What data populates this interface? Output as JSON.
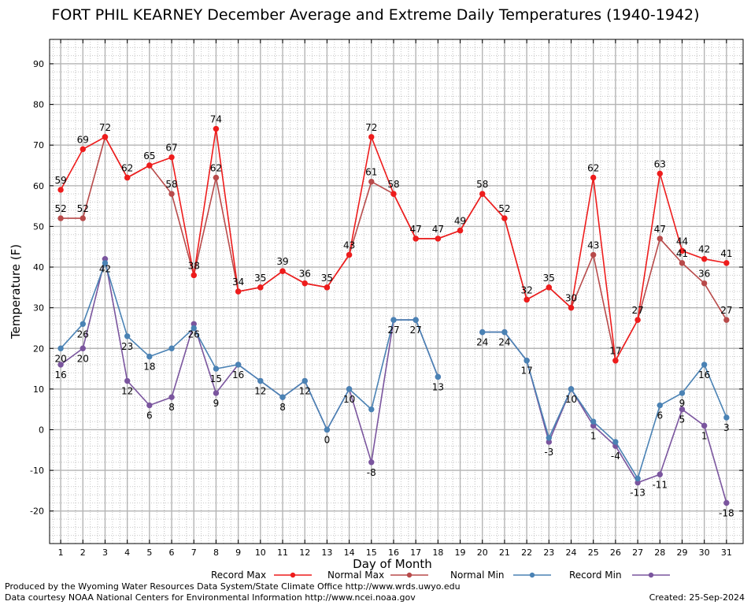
{
  "chart_data": {
    "type": "line",
    "title": "FORT PHIL KEARNEY December Average and Extreme Daily Temperatures (1940-1942)",
    "xlabel": "Day of Month",
    "ylabel": "Temperature (F)",
    "x": [
      1,
      2,
      3,
      4,
      5,
      6,
      7,
      8,
      9,
      10,
      11,
      12,
      13,
      14,
      15,
      16,
      17,
      18,
      19,
      20,
      21,
      22,
      23,
      24,
      25,
      26,
      27,
      28,
      29,
      30,
      31
    ],
    "xlim": [
      0.5,
      31.75
    ],
    "ylim": [
      -28,
      96
    ],
    "yticks": [
      -20,
      -10,
      0,
      10,
      20,
      30,
      40,
      50,
      60,
      70,
      80,
      90
    ],
    "grid": true,
    "legend_position": "bottom",
    "series": [
      {
        "name": "Record Max",
        "color": "#ee1c1c",
        "values": [
          59,
          69,
          72,
          62,
          65,
          67,
          38,
          74,
          34,
          35,
          39,
          36,
          35,
          43,
          72,
          58,
          47,
          47,
          49,
          58,
          52,
          32,
          35,
          30,
          62,
          17,
          27,
          63,
          44,
          42,
          41
        ],
        "labels": [
          59,
          69,
          72,
          62,
          65,
          67,
          38,
          74,
          34,
          35,
          39,
          36,
          35,
          43,
          72,
          58,
          47,
          47,
          49,
          58,
          52,
          32,
          35,
          30,
          62,
          17,
          27,
          63,
          44,
          42,
          41
        ]
      },
      {
        "name": "Normal Max",
        "color": "#b84a4a",
        "values": [
          52,
          52,
          72,
          62,
          65,
          58,
          38,
          62,
          34,
          35,
          39,
          36,
          35,
          43,
          61,
          58,
          47,
          47,
          49,
          58,
          52,
          32,
          35,
          30,
          43,
          17,
          27,
          47,
          41,
          36,
          27
        ],
        "labels": [
          52,
          52,
          null,
          null,
          null,
          58,
          null,
          62,
          null,
          null,
          null,
          null,
          null,
          null,
          61,
          null,
          null,
          null,
          null,
          null,
          null,
          null,
          null,
          null,
          43,
          null,
          null,
          47,
          41,
          36,
          27
        ]
      },
      {
        "name": "Normal Min",
        "color": "#4a82b4",
        "values": [
          20,
          26,
          41,
          23,
          18,
          20,
          25,
          15,
          16,
          12,
          8,
          12,
          0,
          10,
          5,
          27,
          27,
          13,
          null,
          24,
          24,
          17,
          -2,
          10,
          2,
          -3,
          -12,
          6,
          9,
          16,
          3
        ],
        "labels": [
          20,
          26,
          null,
          23,
          18,
          null,
          null,
          15,
          null,
          null,
          null,
          null,
          null,
          null,
          null,
          null,
          null,
          null,
          null,
          null,
          null,
          null,
          null,
          null,
          null,
          null,
          null,
          6,
          9,
          16,
          3
        ]
      },
      {
        "name": "Record Min",
        "color": "#7a559e",
        "values": [
          16,
          20,
          42,
          12,
          6,
          8,
          26,
          9,
          16,
          12,
          8,
          12,
          0,
          10,
          -8,
          27,
          27,
          13,
          null,
          24,
          24,
          17,
          -3,
          10,
          1,
          -4,
          -13,
          -11,
          5,
          1,
          -18
        ],
        "labels": [
          16,
          20,
          42,
          12,
          6,
          8,
          26,
          9,
          16,
          12,
          8,
          12,
          0,
          10,
          -8,
          27,
          27,
          13,
          null,
          24,
          24,
          17,
          -3,
          10,
          1,
          -4,
          -13,
          -11,
          5,
          1,
          -18
        ]
      }
    ]
  },
  "footer": {
    "produced_by": "Produced by the Wyoming Water Resources Data System/State Climate Office http://www.wrds.uwyo.edu",
    "courtesy": "Data courtesy NOAA National Centers for Environmental Information http://www.ncei.noaa.gov",
    "created": "Created:  25-Sep-2024"
  }
}
